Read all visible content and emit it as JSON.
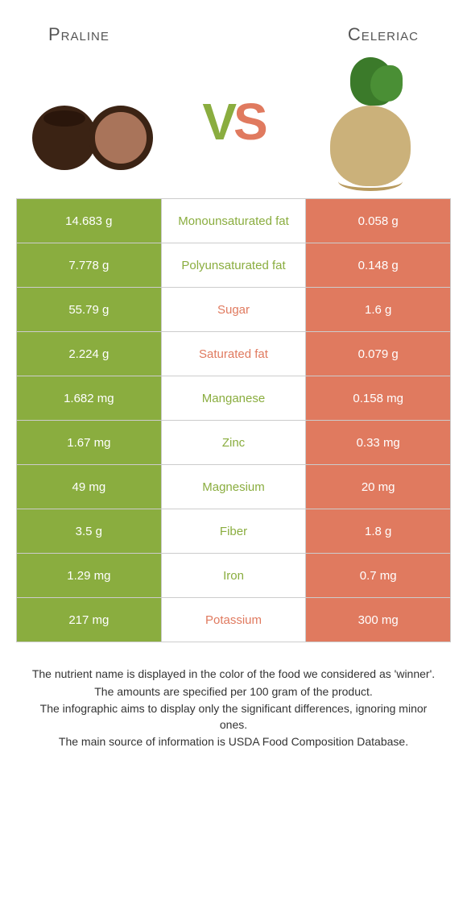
{
  "foods": {
    "left": {
      "name": "Praline",
      "color": "#8aad3f"
    },
    "right": {
      "name": "Celeriac",
      "color": "#e07a5f"
    }
  },
  "vs": {
    "v": "V",
    "s": "S"
  },
  "colors": {
    "left": "#8aad3f",
    "right": "#e07a5f",
    "neutral_text": "#555555"
  },
  "rows": [
    {
      "label": "Monounsaturated fat",
      "left": "14.683 g",
      "right": "0.058 g",
      "winner": "left"
    },
    {
      "label": "Polyunsaturated fat",
      "left": "7.778 g",
      "right": "0.148 g",
      "winner": "left"
    },
    {
      "label": "Sugar",
      "left": "55.79 g",
      "right": "1.6 g",
      "winner": "right"
    },
    {
      "label": "Saturated fat",
      "left": "2.224 g",
      "right": "0.079 g",
      "winner": "right"
    },
    {
      "label": "Manganese",
      "left": "1.682 mg",
      "right": "0.158 mg",
      "winner": "left"
    },
    {
      "label": "Zinc",
      "left": "1.67 mg",
      "right": "0.33 mg",
      "winner": "left"
    },
    {
      "label": "Magnesium",
      "left": "49 mg",
      "right": "20 mg",
      "winner": "left"
    },
    {
      "label": "Fiber",
      "left": "3.5 g",
      "right": "1.8 g",
      "winner": "left"
    },
    {
      "label": "Iron",
      "left": "1.29 mg",
      "right": "0.7 mg",
      "winner": "left"
    },
    {
      "label": "Potassium",
      "left": "217 mg",
      "right": "300 mg",
      "winner": "right"
    }
  ],
  "footnotes": [
    "The nutrient name is displayed in the color of the food we considered as 'winner'.",
    "The amounts are specified per 100 gram of the product.",
    "The infographic aims to display only the significant differences, ignoring minor ones.",
    "The main source of information is USDA Food Composition Database."
  ]
}
